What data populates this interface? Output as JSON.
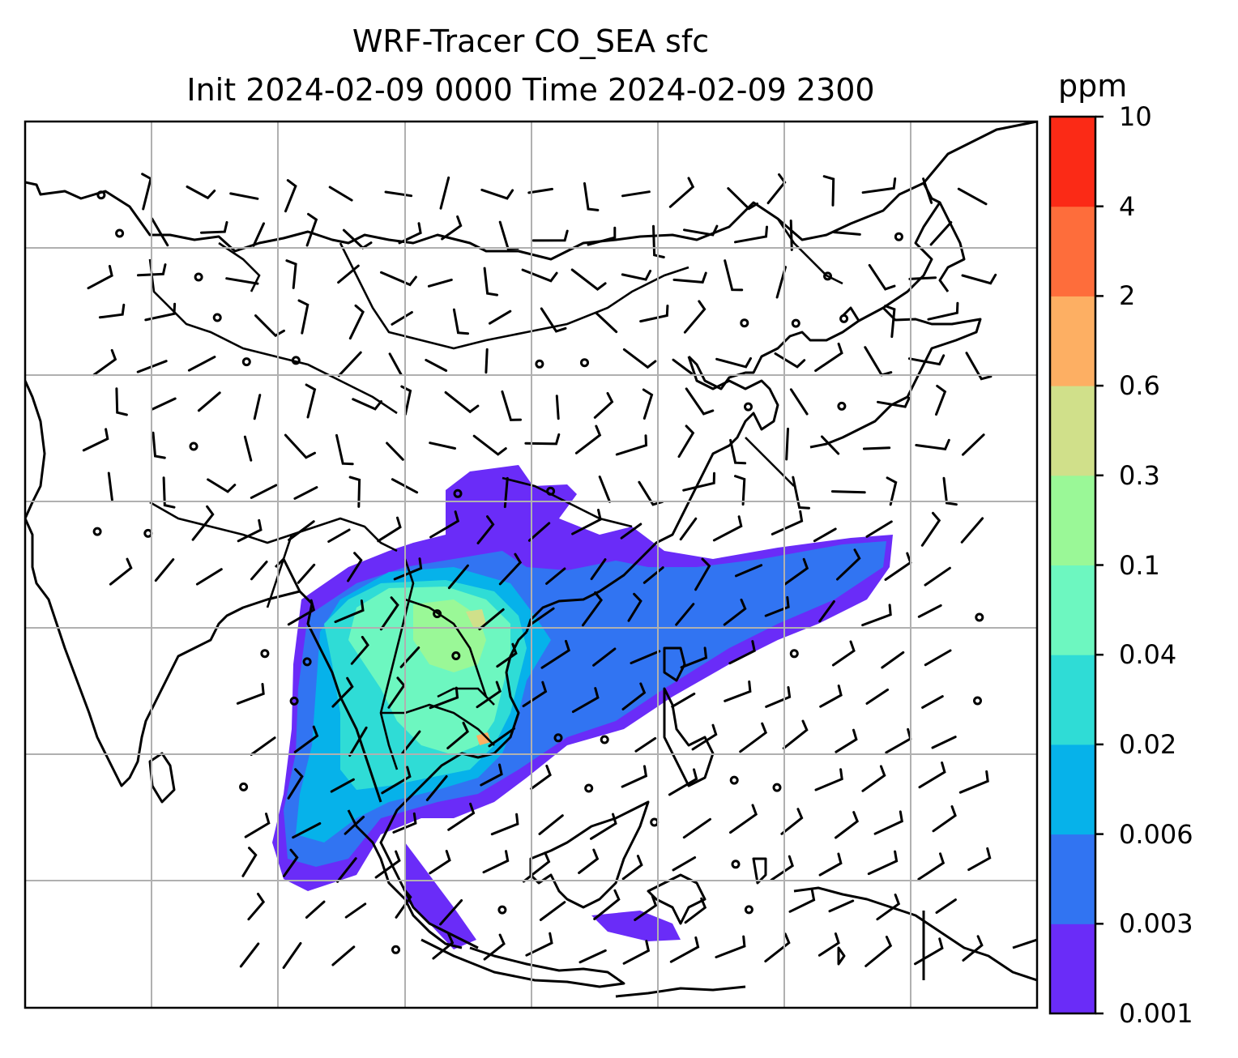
{
  "title": {
    "line1": "WRF-Tracer CO_SEA sfc",
    "line2": "Init 2024-02-09 0000 Time 2024-02-09 2300"
  },
  "colorbar": {
    "unit": "ppm",
    "ticks": [
      "0.001",
      "0.003",
      "0.006",
      "0.02",
      "0.04",
      "0.1",
      "0.3",
      "0.6",
      "2",
      "4",
      "10"
    ],
    "colors": [
      "#6a2cf8",
      "#3174f2",
      "#06b2ea",
      "#2fdcd6",
      "#6df7c0",
      "#9af897",
      "#d0e08a",
      "#fdaf63",
      "#fe6d3b",
      "#fb2a16"
    ]
  },
  "map": {
    "region": "South-East Asia",
    "gridlines": true,
    "coastline_color": "#000000",
    "gridline_color": "#b0b0b0"
  }
}
